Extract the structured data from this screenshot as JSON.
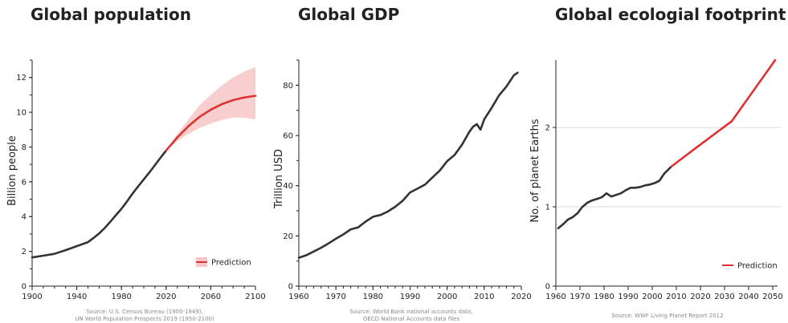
{
  "colors": {
    "line": "#333333",
    "accent": "#dd3333",
    "band": "#f7c6c6",
    "grid": "#d9d9d9",
    "source": "#8a8a8a"
  },
  "chart_data": [
    {
      "type": "line",
      "title": "Global population",
      "xlabel": "",
      "ylabel": "Billion people",
      "xlim": [
        1900,
        2100
      ],
      "ylim": [
        0,
        13
      ],
      "xticks": [
        1900,
        1940,
        1980,
        2020,
        2060,
        2100
      ],
      "yticks": [
        0,
        2,
        4,
        6,
        8,
        10,
        12
      ],
      "grid": false,
      "legend": {
        "placement": "bottom-right",
        "entries": [
          "Prediction"
        ]
      },
      "series": [
        {
          "x": [
            1900,
            1910,
            1920,
            1930,
            1940,
            1950,
            1955,
            1960,
            1965,
            1970,
            1975,
            1980,
            1985,
            1990,
            1995,
            2000,
            2005,
            2010,
            2015,
            2020
          ],
          "y": [
            1.65,
            1.75,
            1.86,
            2.07,
            2.3,
            2.53,
            2.77,
            3.03,
            3.34,
            3.7,
            4.08,
            4.45,
            4.87,
            5.33,
            5.74,
            6.14,
            6.54,
            6.96,
            7.38,
            7.8
          ]
        },
        {
          "name": "Prediction",
          "x": [
            2020,
            2030,
            2040,
            2050,
            2060,
            2070,
            2080,
            2090,
            2100
          ],
          "y": [
            7.8,
            8.55,
            9.2,
            9.74,
            10.15,
            10.47,
            10.7,
            10.85,
            10.95
          ],
          "lower": [
            7.8,
            8.35,
            8.75,
            9.1,
            9.35,
            9.55,
            9.7,
            9.68,
            9.6
          ],
          "upper": [
            7.8,
            8.75,
            9.6,
            10.4,
            11.0,
            11.55,
            12.0,
            12.35,
            12.6
          ]
        }
      ],
      "source": [
        "Source: U.S. Census Bureau (1900-1949),",
        "UN World Population Prospects 2019 (1950-2100)"
      ]
    },
    {
      "type": "line",
      "title": "Global GDP",
      "xlabel": "",
      "ylabel": "Trillion  USD",
      "xlim": [
        1960,
        2020
      ],
      "ylim": [
        0,
        90
      ],
      "xticks": [
        1960,
        1970,
        1980,
        1990,
        2000,
        2010,
        2020
      ],
      "yticks": [
        0,
        20,
        40,
        60,
        80
      ],
      "grid": false,
      "series": [
        {
          "x": [
            1960,
            1962,
            1964,
            1966,
            1968,
            1970,
            1972,
            1974,
            1975,
            1976,
            1978,
            1980,
            1981,
            1982,
            1984,
            1986,
            1988,
            1990,
            1992,
            1994,
            1996,
            1998,
            2000,
            2002,
            2004,
            2006,
            2007,
            2008,
            2009,
            2010,
            2012,
            2014,
            2016,
            2018,
            2019
          ],
          "y": [
            11.3,
            12.3,
            13.8,
            15.3,
            17.0,
            18.9,
            20.6,
            22.6,
            23.0,
            23.4,
            25.7,
            27.6,
            28.0,
            28.3,
            29.7,
            31.6,
            34.0,
            37.3,
            38.8,
            40.4,
            43.2,
            46.0,
            49.8,
            52.2,
            56.3,
            61.5,
            63.5,
            64.5,
            62.3,
            66.4,
            71.0,
            76.0,
            79.5,
            84.0,
            85.0
          ]
        }
      ],
      "source": [
        "Source: World Bank national accounts data,",
        "OECD National Accounts data files"
      ]
    },
    {
      "type": "line",
      "title": "Global ecologial footprint",
      "xlabel": "",
      "ylabel": "No. of planet Earths",
      "xlim": [
        1960,
        2052
      ],
      "ylim": [
        0,
        2.85
      ],
      "xticks": [
        1960,
        1970,
        1980,
        1990,
        2000,
        2010,
        2020,
        2030,
        2040,
        2050
      ],
      "yticks": [
        0,
        1,
        2
      ],
      "grid": true,
      "legend": {
        "placement": "bottom-right",
        "entries": [
          "Prediction"
        ]
      },
      "series": [
        {
          "x": [
            1961,
            1963,
            1965,
            1967,
            1969,
            1971,
            1973,
            1975,
            1977,
            1979,
            1981,
            1983,
            1985,
            1987,
            1989,
            1991,
            1993,
            1995,
            1997,
            1999,
            2001,
            2003,
            2005,
            2007,
            2008
          ],
          "y": [
            0.73,
            0.78,
            0.84,
            0.87,
            0.92,
            1.0,
            1.05,
            1.08,
            1.1,
            1.12,
            1.17,
            1.13,
            1.15,
            1.17,
            1.21,
            1.24,
            1.24,
            1.25,
            1.27,
            1.28,
            1.3,
            1.33,
            1.42,
            1.48,
            1.51
          ]
        },
        {
          "name": "Prediction",
          "x": [
            2008,
            2018,
            2033,
            2051
          ],
          "y": [
            1.51,
            1.74,
            2.08,
            2.85
          ]
        }
      ],
      "source": [
        "Source: WWF Living Planet Report 2012"
      ]
    }
  ]
}
